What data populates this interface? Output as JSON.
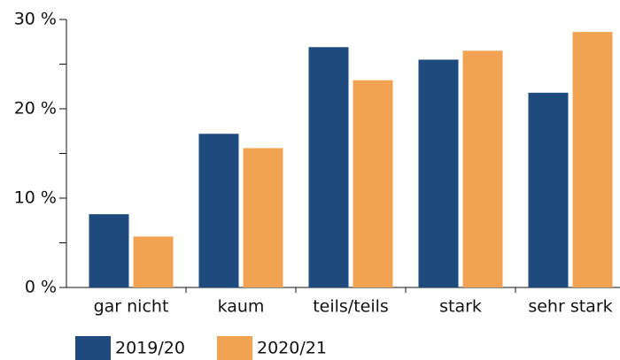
{
  "chart_data": {
    "type": "bar",
    "categories": [
      "gar nicht",
      "kaum",
      "teils/teils",
      "stark",
      "sehr stark"
    ],
    "series": [
      {
        "name": "2019/20",
        "color": "#1e4a7e",
        "values": [
          8.2,
          17.2,
          26.9,
          25.5,
          21.8
        ]
      },
      {
        "name": "2020/21",
        "color": "#f2a352",
        "values": [
          5.7,
          15.6,
          23.2,
          26.5,
          28.6
        ]
      }
    ],
    "ylim": [
      0,
      30
    ],
    "yticks": [
      {
        "value": 0,
        "label": "0 %"
      },
      {
        "value": 10,
        "label": "10 %"
      },
      {
        "value": 20,
        "label": "20 %"
      },
      {
        "value": 30,
        "label": "30 %"
      }
    ],
    "minor_yticks": [
      5,
      15,
      25
    ],
    "grid": false,
    "legend": "bottom"
  }
}
